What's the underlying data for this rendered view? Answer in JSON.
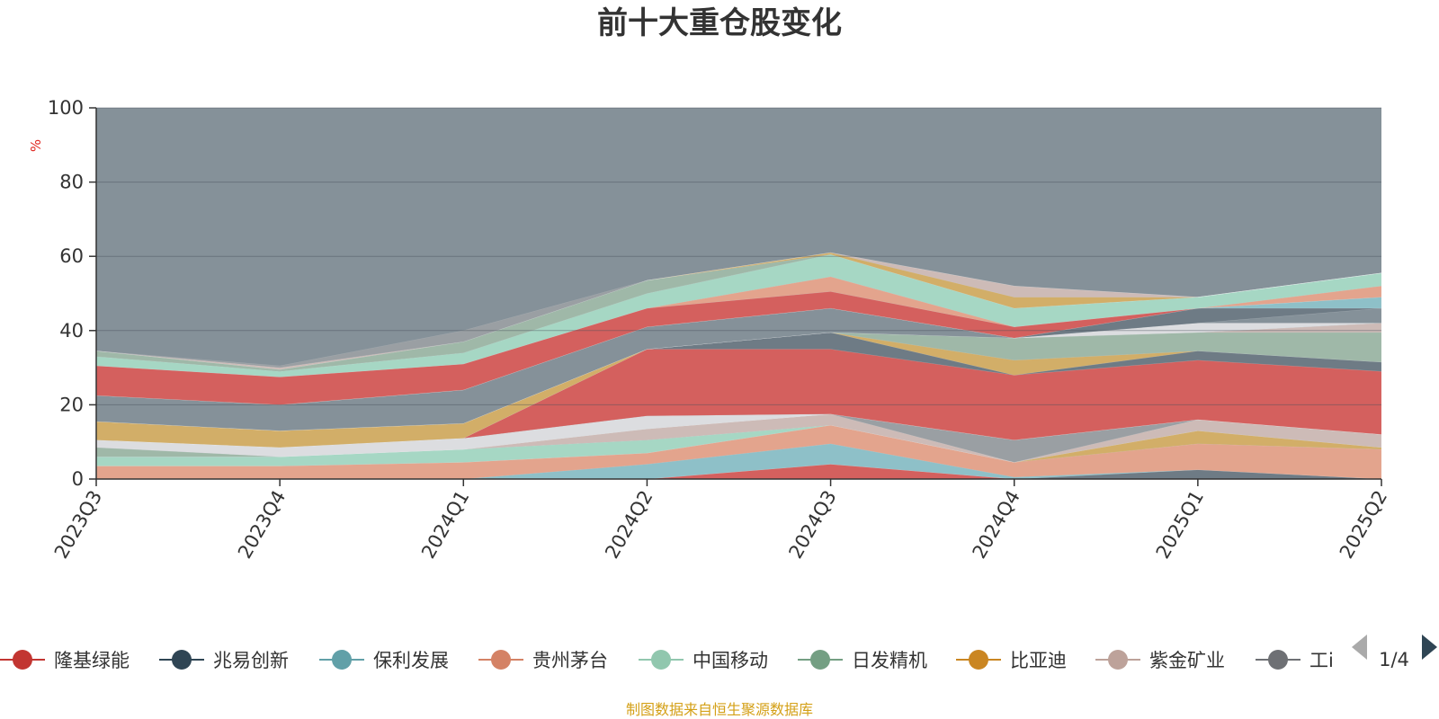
{
  "chart_data": {
    "type": "area",
    "title": "前十大重仓股变化",
    "ylabel": "%",
    "ylim": [
      0,
      100
    ],
    "yticks": [
      0,
      20,
      40,
      60,
      80,
      100
    ],
    "categories": [
      "2023Q3",
      "2023Q4",
      "2024Q1",
      "2024Q2",
      "2024Q3",
      "2024Q4",
      "2025Q1",
      "2025Q2"
    ],
    "background_area_color": "#859199",
    "layers": [
      {
        "color": "#d4605e",
        "values": [
          0,
          0,
          0,
          0,
          4,
          0,
          0,
          0
        ]
      },
      {
        "color": "#6e7b85",
        "values": [
          0,
          0,
          0,
          0,
          0,
          0,
          2.5,
          0
        ]
      },
      {
        "color": "#8ec0c8",
        "values": [
          0,
          0,
          0,
          4,
          5.5,
          0.5,
          0,
          0
        ]
      },
      {
        "color": "#e3a48d",
        "values": [
          3.5,
          3.5,
          4.5,
          3,
          5,
          4,
          7,
          8
        ]
      },
      {
        "color": "#d2ae68",
        "values": [
          0,
          0,
          0,
          0,
          0,
          0,
          3.5,
          0.5
        ]
      },
      {
        "color": "#a6d7c4",
        "values": [
          2.5,
          2.5,
          3.5,
          3.5,
          0,
          0,
          0,
          0
        ]
      },
      {
        "color": "#cdbbb7",
        "values": [
          0,
          0,
          0,
          3,
          3,
          0,
          3,
          3.5
        ]
      },
      {
        "color": "#9a9fa3",
        "values": [
          0,
          0,
          0,
          0,
          0,
          6,
          0,
          0
        ]
      },
      {
        "color": "#9fb8a8",
        "values": [
          2.5,
          0,
          0,
          0,
          0,
          0,
          0,
          0
        ]
      },
      {
        "color": "#dcdde0",
        "values": [
          2,
          2.5,
          3,
          3.5,
          0,
          0,
          0,
          0
        ]
      },
      {
        "color": "#d4605e",
        "values": [
          0,
          0,
          0,
          18,
          17.5,
          17.5,
          16,
          17
        ]
      },
      {
        "color": "#6e7b85",
        "values": [
          0,
          0,
          0,
          0,
          4.5,
          0,
          2.5,
          2.5
        ]
      },
      {
        "color": "#d2ae68",
        "values": [
          5,
          4.5,
          4,
          0,
          0,
          4,
          0,
          0
        ]
      },
      {
        "color": "#9fb8a8",
        "values": [
          0,
          0,
          0,
          0,
          0,
          6,
          5,
          8
        ]
      },
      {
        "color": "#cdbbb7",
        "values": [
          0,
          0,
          0,
          0,
          0,
          0,
          0,
          2.5
        ]
      },
      {
        "color": "#dcdde0",
        "values": [
          0,
          0,
          0,
          0,
          0,
          0,
          2.5,
          0
        ]
      },
      {
        "color": "#859199",
        "values": [
          7,
          7,
          9,
          6,
          6.5,
          0,
          0,
          4
        ]
      },
      {
        "color": "#6e7b85",
        "values": [
          0,
          0,
          0,
          0,
          0,
          0,
          4,
          0
        ]
      },
      {
        "color": "#8ec0c8",
        "values": [
          0,
          0,
          0,
          0,
          0,
          0,
          0,
          3
        ]
      },
      {
        "color": "#d4605e",
        "values": [
          8,
          7.5,
          7,
          5,
          4.5,
          3,
          0,
          0
        ]
      },
      {
        "color": "#e3a48d",
        "values": [
          0,
          0,
          0,
          0,
          4,
          0,
          0,
          3
        ]
      },
      {
        "color": "#a6d7c4",
        "values": [
          2.5,
          1.5,
          3,
          4,
          6,
          5,
          3,
          3.5
        ]
      },
      {
        "color": "#9fb8a8",
        "values": [
          1.5,
          0.5,
          3,
          3.5,
          0,
          0,
          0,
          0
        ]
      },
      {
        "color": "#d2ae68",
        "values": [
          0,
          0,
          0,
          0,
          0.5,
          3,
          0,
          0
        ]
      },
      {
        "color": "#cdbbb7",
        "values": [
          0,
          0.5,
          0,
          0,
          0,
          3,
          0,
          0
        ]
      },
      {
        "color": "#9a9fa3",
        "values": [
          0,
          0.5,
          3,
          0,
          0,
          0,
          0,
          0
        ]
      }
    ],
    "legend": {
      "placement": "bottom",
      "page": "1/4",
      "items": [
        {
          "name": "隆基绿能",
          "color": "#c23531"
        },
        {
          "name": "兆易创新",
          "color": "#2f4554"
        },
        {
          "name": "保利发展",
          "color": "#61a0a8"
        },
        {
          "name": "贵州茅台",
          "color": "#d48265"
        },
        {
          "name": "中国移动",
          "color": "#91c7ae"
        },
        {
          "name": "日发精机",
          "color": "#749f83"
        },
        {
          "name": "比亚迪",
          "color": "#ca8622"
        },
        {
          "name": "紫金矿业",
          "color": "#bda29a"
        },
        {
          "name": "工i",
          "color": "#6e7074"
        }
      ]
    },
    "source": "制图数据来自恒生聚源数据库"
  }
}
